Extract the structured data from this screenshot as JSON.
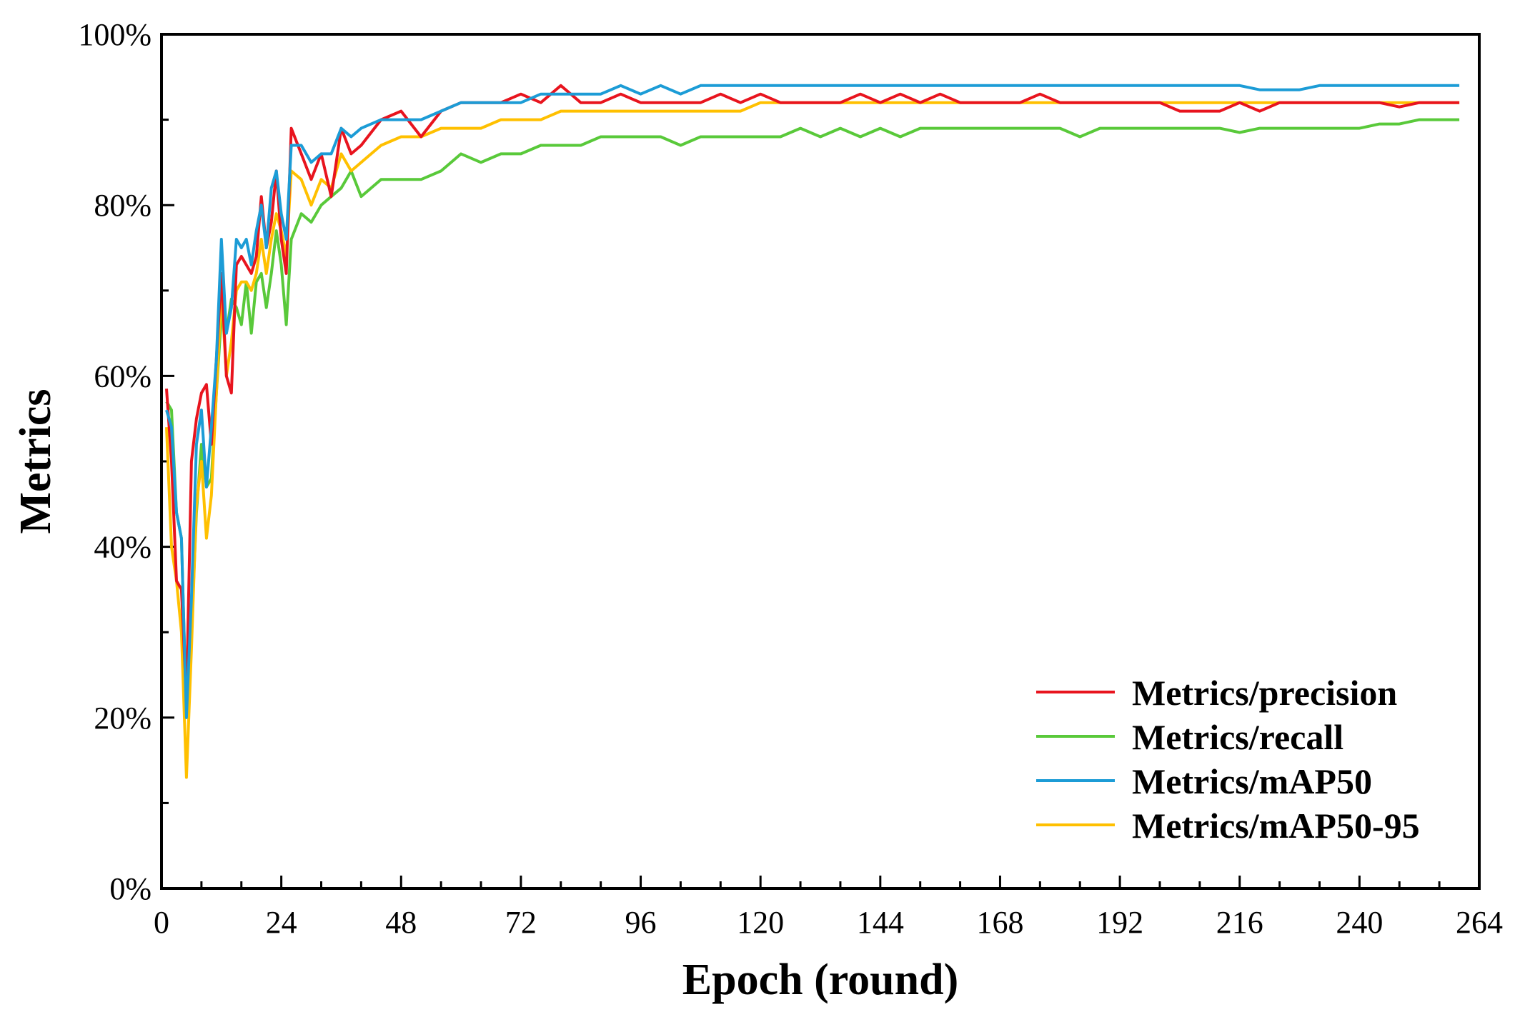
{
  "chart_data": {
    "type": "line",
    "xlabel": "Epoch  (round)",
    "ylabel": "Metrics",
    "xlim": [
      0,
      264
    ],
    "ylim": [
      0,
      100
    ],
    "x_ticks": [
      0,
      24,
      48,
      72,
      96,
      120,
      144,
      168,
      192,
      216,
      240,
      264
    ],
    "y_ticks": [
      0,
      20,
      40,
      60,
      80,
      100
    ],
    "y_tick_labels": [
      "0%",
      "20%",
      "40%",
      "60%",
      "80%",
      "100%"
    ],
    "grid": false,
    "legend_position": "bottom-right",
    "x": [
      1,
      2,
      3,
      4,
      5,
      6,
      7,
      8,
      9,
      10,
      11,
      12,
      13,
      14,
      15,
      16,
      17,
      18,
      19,
      20,
      21,
      22,
      23,
      24,
      25,
      26,
      28,
      30,
      32,
      34,
      36,
      38,
      40,
      44,
      48,
      52,
      56,
      60,
      64,
      68,
      72,
      76,
      80,
      84,
      88,
      92,
      96,
      100,
      104,
      108,
      112,
      116,
      120,
      124,
      128,
      132,
      136,
      140,
      144,
      148,
      152,
      156,
      160,
      164,
      168,
      172,
      176,
      180,
      184,
      188,
      192,
      196,
      200,
      204,
      208,
      212,
      216,
      220,
      224,
      228,
      232,
      236,
      240,
      244,
      248,
      252,
      256,
      260
    ],
    "series": [
      {
        "name": "Metrics/precision",
        "color": "#e8141e",
        "values": [
          58.5,
          50,
          36,
          35,
          22,
          50,
          55,
          58,
          59,
          52,
          62,
          72,
          60,
          58,
          73,
          74,
          73,
          72,
          74,
          81,
          75,
          78,
          84,
          76,
          72,
          89,
          86,
          83,
          86,
          81,
          89,
          86,
          87,
          90,
          91,
          88,
          91,
          92,
          92,
          92,
          93,
          92,
          94,
          92,
          92,
          93,
          92,
          92,
          92,
          92,
          93,
          92,
          93,
          92,
          92,
          92,
          92,
          93,
          92,
          93,
          92,
          93,
          92,
          92,
          92,
          92,
          93,
          92,
          92,
          92,
          92,
          92,
          92,
          91,
          91,
          91,
          92,
          91,
          92,
          92,
          92,
          92,
          92,
          92,
          91.5,
          92,
          92,
          92
        ]
      },
      {
        "name": "Metrics/recall",
        "color": "#59c93a",
        "values": [
          57,
          56,
          44,
          41,
          20,
          30,
          44,
          52,
          47,
          48,
          58,
          67,
          65,
          69,
          68,
          66,
          71,
          65,
          71,
          72,
          68,
          72,
          77,
          73,
          66,
          76,
          79,
          78,
          80,
          81,
          82,
          84,
          81,
          83,
          83,
          83,
          84,
          86,
          85,
          86,
          86,
          87,
          87,
          87,
          88,
          88,
          88,
          88,
          87,
          88,
          88,
          88,
          88,
          88,
          89,
          88,
          89,
          88,
          89,
          88,
          89,
          89,
          89,
          89,
          89,
          89,
          89,
          89,
          88,
          89,
          89,
          89,
          89,
          89,
          89,
          89,
          88.5,
          89,
          89,
          89,
          89,
          89,
          89,
          89.5,
          89.5,
          90,
          90,
          90
        ]
      },
      {
        "name": "Metrics/mAP50",
        "color": "#1c9cd6",
        "values": [
          56,
          54,
          44,
          41,
          20,
          34,
          52,
          56,
          47,
          54,
          62,
          76,
          65,
          68,
          76,
          75,
          76,
          73,
          77,
          80,
          75,
          82,
          84,
          79,
          76,
          87,
          87,
          85,
          86,
          86,
          89,
          88,
          89,
          90,
          90,
          90,
          91,
          92,
          92,
          92,
          92,
          93,
          93,
          93,
          93,
          94,
          93,
          94,
          93,
          94,
          94,
          94,
          94,
          94,
          94,
          94,
          94,
          94,
          94,
          94,
          94,
          94,
          94,
          94,
          94,
          94,
          94,
          94,
          94,
          94,
          94,
          94,
          94,
          94,
          94,
          94,
          94,
          93.5,
          93.5,
          93.5,
          94,
          94,
          94,
          94,
          94,
          94,
          94,
          94
        ]
      },
      {
        "name": "Metrics/mAP50-95",
        "color": "#ffc000",
        "values": [
          54,
          40,
          36,
          30,
          13,
          28,
          45,
          50,
          41,
          46,
          58,
          70,
          60,
          64,
          70,
          71,
          71,
          70,
          72,
          76,
          72,
          76,
          79,
          77,
          74,
          84,
          83,
          80,
          83,
          82,
          86,
          84,
          85,
          87,
          88,
          88,
          89,
          89,
          89,
          90,
          90,
          90,
          91,
          91,
          91,
          91,
          91,
          91,
          91,
          91,
          91,
          91,
          92,
          92,
          92,
          92,
          92,
          92,
          92,
          92,
          92,
          92,
          92,
          92,
          92,
          92,
          92,
          92,
          92,
          92,
          92,
          92,
          92,
          92,
          92,
          92,
          92,
          92,
          92,
          92,
          92,
          92,
          92,
          92,
          92,
          92,
          92,
          92
        ]
      }
    ]
  }
}
